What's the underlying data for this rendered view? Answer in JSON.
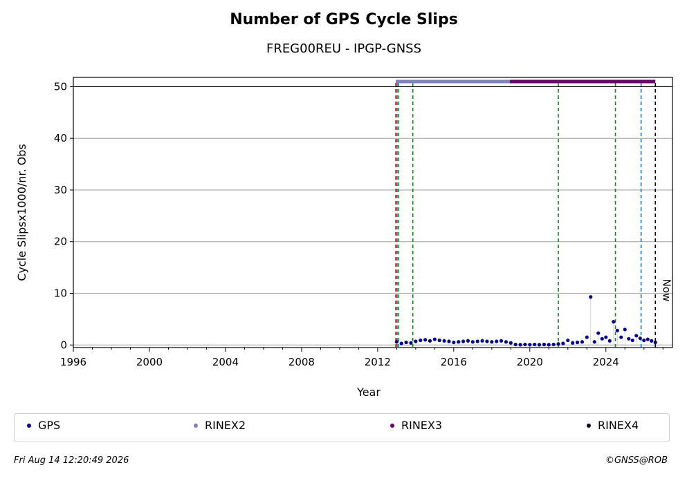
{
  "chart_data": {
    "type": "scatter",
    "title": "Number of GPS Cycle Slips",
    "subtitle": "FREG00REU - IPGP-GNSS",
    "xlabel": "Year",
    "ylabel": "Cycle Slipsx1000/nr. Obs",
    "xlim": [
      1996,
      2027.5
    ],
    "ylim": [
      -0.5,
      51.8
    ],
    "xticks": [
      1996,
      2000,
      2004,
      2008,
      2012,
      2016,
      2020,
      2024
    ],
    "yticks": [
      0,
      10,
      20,
      30,
      40,
      50
    ],
    "grid": "horizontal",
    "legend_placement": "bottom",
    "now_label": "Now",
    "series": [
      {
        "name": "GPS",
        "color": "#00008b",
        "x": [
          2013.0,
          2013.25,
          2013.5,
          2013.75,
          2014.0,
          2014.25,
          2014.5,
          2014.75,
          2015.0,
          2015.25,
          2015.5,
          2015.75,
          2016.0,
          2016.25,
          2016.5,
          2016.75,
          2017.0,
          2017.25,
          2017.5,
          2017.75,
          2018.0,
          2018.25,
          2018.5,
          2018.75,
          2019.0,
          2019.25,
          2019.5,
          2019.75,
          2020.0,
          2020.25,
          2020.5,
          2020.75,
          2021.0,
          2021.25,
          2021.5,
          2021.75,
          2022.0,
          2022.25,
          2022.5,
          2022.75,
          2023.0,
          2023.2,
          2023.4,
          2023.6,
          2023.8,
          2024.0,
          2024.2,
          2024.4,
          2024.6,
          2024.8,
          2025.0,
          2025.2,
          2025.4,
          2025.6,
          2025.8,
          2026.0,
          2026.2,
          2026.4,
          2026.6
        ],
        "y": [
          0.6,
          0.3,
          0.5,
          0.4,
          0.7,
          0.9,
          1.0,
          0.8,
          1.1,
          0.9,
          0.8,
          0.7,
          0.5,
          0.6,
          0.7,
          0.8,
          0.6,
          0.7,
          0.8,
          0.7,
          0.6,
          0.7,
          0.8,
          0.6,
          0.4,
          0.1,
          0.05,
          0.1,
          0.05,
          0.1,
          0.05,
          0.1,
          0.05,
          0.1,
          0.2,
          0.3,
          0.9,
          0.4,
          0.5,
          0.6,
          1.5,
          9.3,
          0.6,
          2.3,
          1.2,
          1.5,
          0.8,
          4.5,
          2.8,
          1.5,
          3.0,
          1.2,
          0.9,
          1.8,
          1.3,
          0.9,
          1.1,
          0.8,
          0.5
        ]
      },
      {
        "name": "RINEX2",
        "color": "#8080c0",
        "x_range": [
          2012.95,
          2018.95
        ],
        "y": 51
      },
      {
        "name": "RINEX3",
        "color": "#6a006a",
        "x_range": [
          2018.95,
          2026.6
        ],
        "y": 51
      },
      {
        "name": "RINEX4",
        "color": "#1a0020",
        "x_range": [],
        "y": 51
      }
    ],
    "vlines": [
      {
        "x": 2012.95,
        "color": "#d62020"
      },
      {
        "x": 2013.02,
        "color": "#208020"
      },
      {
        "x": 2013.1,
        "color": "#1f6fbf"
      },
      {
        "x": 2013.85,
        "color": "#208020"
      },
      {
        "x": 2021.5,
        "color": "#208020"
      },
      {
        "x": 2024.5,
        "color": "#208020"
      },
      {
        "x": 2025.85,
        "color": "#1f6fbf"
      },
      {
        "x": 2026.6,
        "color": "#000000"
      }
    ]
  },
  "legend": [
    {
      "label": "GPS",
      "color": "#00008b"
    },
    {
      "label": "RINEX2",
      "color": "#8080c0"
    },
    {
      "label": "RINEX3",
      "color": "#6a006a"
    },
    {
      "label": "RINEX4",
      "color": "#1a0020"
    }
  ],
  "footer": {
    "date": "Fri Aug 14 12:20:49 2026",
    "credit": "©GNSS@ROB"
  }
}
